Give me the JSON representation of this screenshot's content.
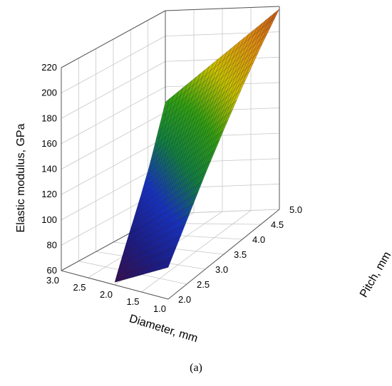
{
  "chart_data": {
    "type": "surface",
    "panel_label": "(a)",
    "title": "",
    "xlabel": "Diameter, mm",
    "ylabel": "Pitch, mm",
    "zlabel": "Elastic modulus, GPa",
    "x_ticks": [
      "3.0",
      "2.5",
      "2.0",
      "1.5",
      "1.0"
    ],
    "y_ticks": [
      "2.0",
      "2.5",
      "3.0",
      "3.5",
      "4.0",
      "4.5",
      "5.0"
    ],
    "z_ticks": [
      "60",
      "80",
      "100",
      "120",
      "140",
      "160",
      "180",
      "200",
      "220"
    ],
    "xlim": [
      1.0,
      3.0
    ],
    "ylim": [
      2.0,
      5.0
    ],
    "zlim": [
      60,
      220
    ],
    "grid": true,
    "colormap": [
      "#3a0a4a",
      "#1a1a8a",
      "#1530c8",
      "#0f8040",
      "#2fa010",
      "#c8c000",
      "#e09010",
      "#c05018"
    ],
    "surface_rows": [
      {
        "diameter": 2.0,
        "pitch": [
          2.0,
          2.5,
          3.0,
          3.5,
          4.0,
          4.5,
          5.0
        ],
        "modulus": [
          62,
          80,
          99,
          119,
          140,
          162,
          183
        ]
      },
      {
        "diameter": 1.0,
        "pitch": [
          2.0,
          2.5,
          3.0,
          3.5,
          4.0,
          4.5,
          5.0
        ],
        "modulus": [
          85,
          110,
          135,
          158,
          180,
          200,
          218
        ]
      }
    ],
    "surface_extent": {
      "diameter_max_at_pitch_2": 2.0,
      "diameter_max_at_pitch_5": 3.0
    }
  }
}
